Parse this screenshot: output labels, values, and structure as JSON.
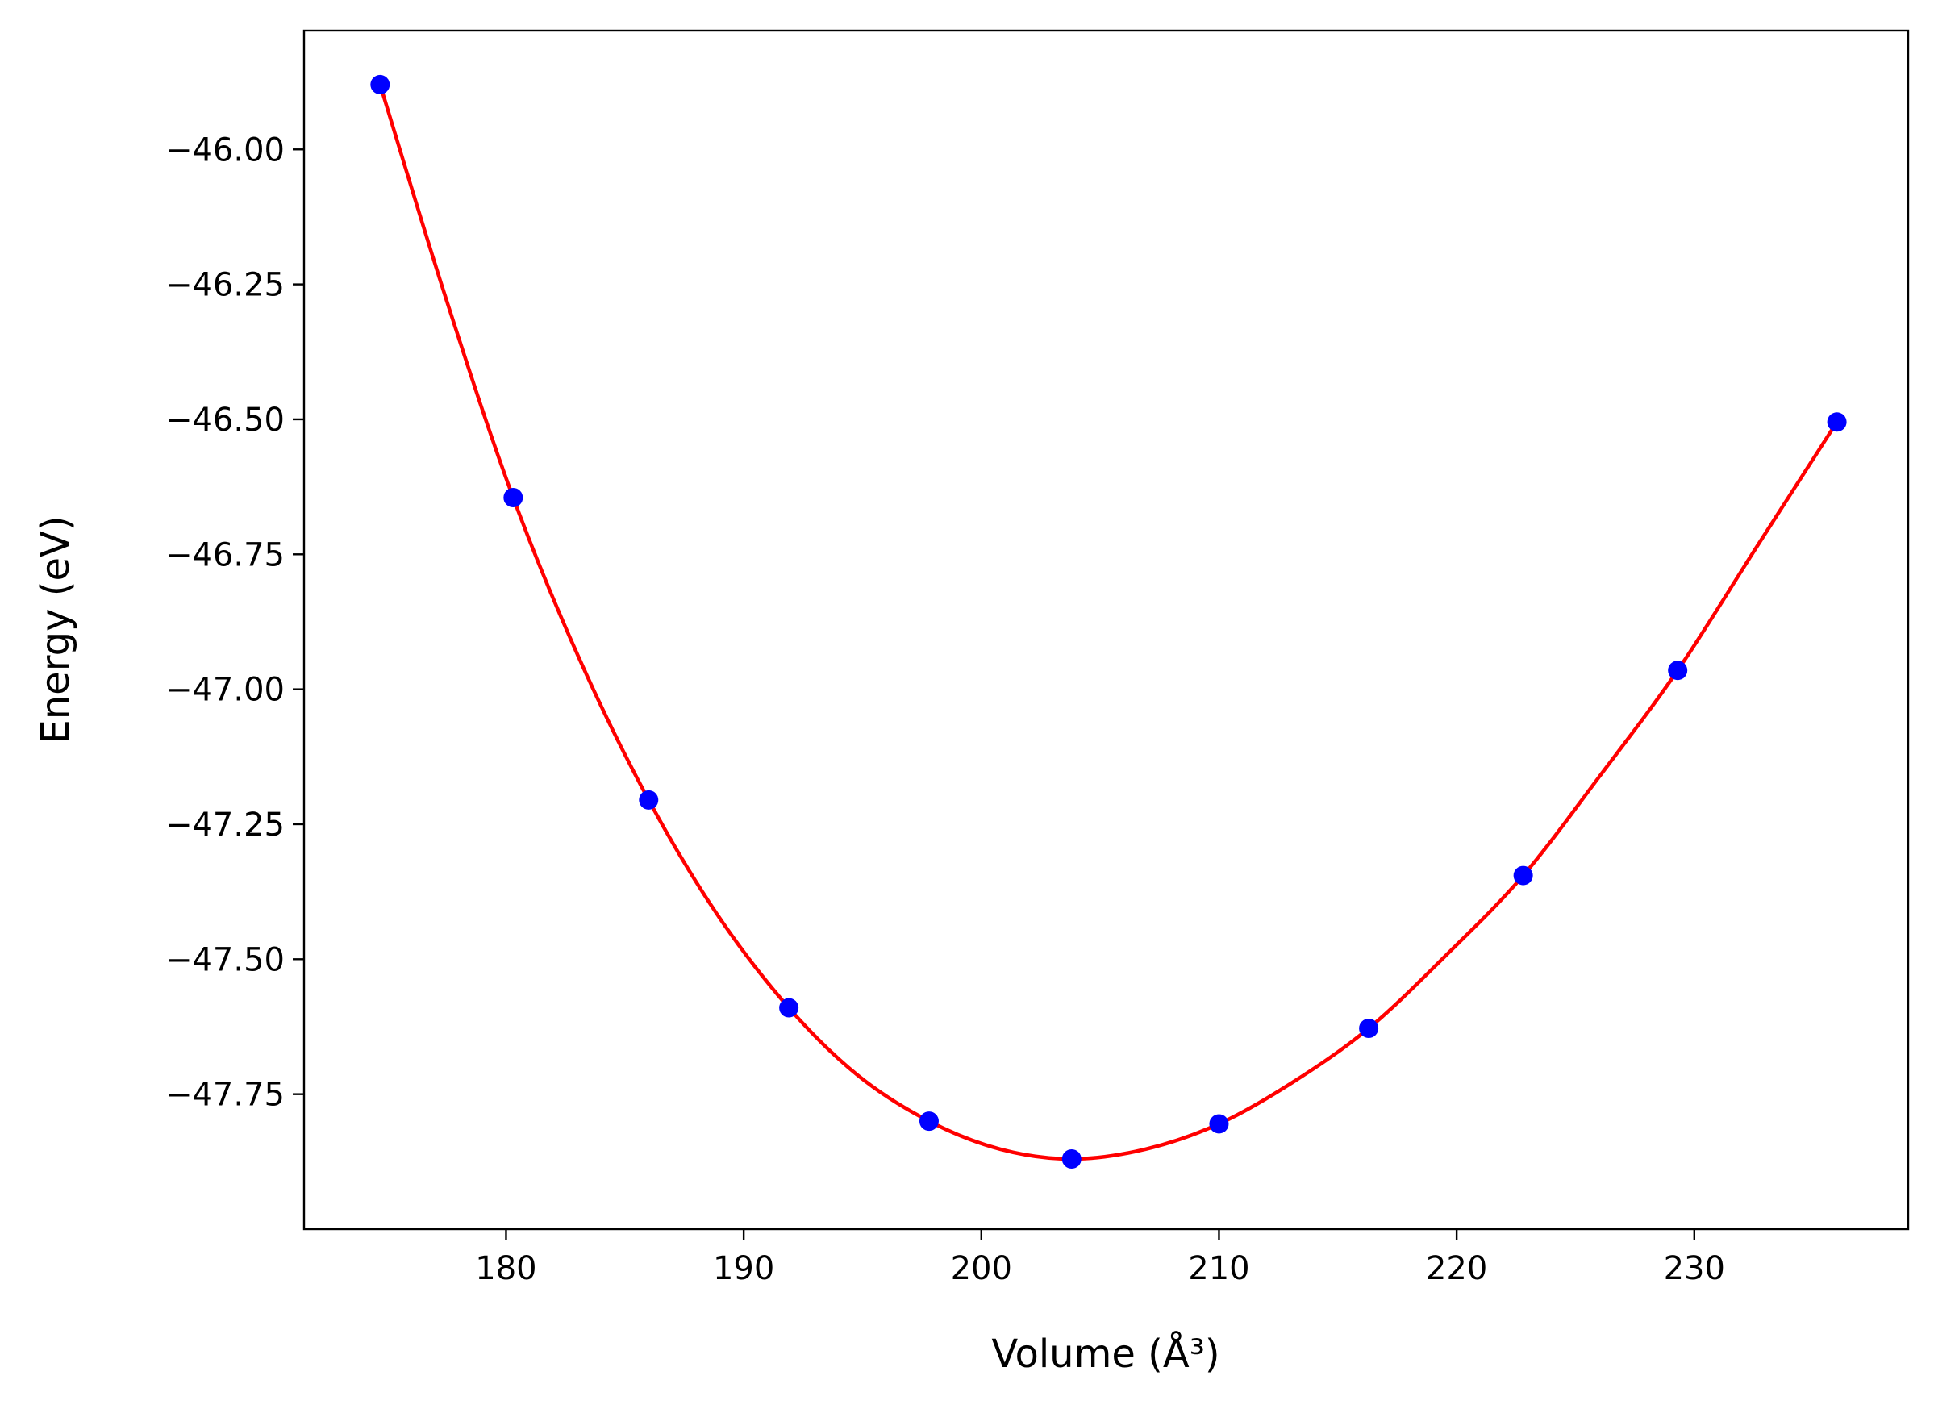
{
  "chart_data": {
    "type": "scatter",
    "title": "",
    "xlabel": "Volume (Å³)",
    "ylabel": "Energy (eV)",
    "xlim": [
      171.5,
      239.0
    ],
    "ylim": [
      -48.0,
      -45.78
    ],
    "xticks": [
      180,
      190,
      200,
      210,
      220,
      230
    ],
    "xtick_labels": [
      "180",
      "190",
      "200",
      "210",
      "220",
      "230"
    ],
    "yticks": [
      -46.0,
      -46.25,
      -46.5,
      -46.75,
      -47.0,
      -47.25,
      -47.5,
      -47.75
    ],
    "ytick_labels": [
      "−46.00",
      "−46.25",
      "−46.50",
      "−46.75",
      "−47.00",
      "−47.25",
      "−47.50",
      "−47.75"
    ],
    "grid": false,
    "series": [
      {
        "kind": "points",
        "color": "#0000ff",
        "x": [
          174.7,
          180.3,
          186.0,
          191.9,
          197.8,
          203.8,
          210.0,
          216.3,
          222.8,
          229.3,
          236.0
        ],
        "y": [
          -45.88,
          -46.645,
          -47.205,
          -47.59,
          -47.8,
          -47.87,
          -47.805,
          -47.628,
          -47.345,
          -46.965,
          -46.505
        ]
      },
      {
        "kind": "fit-curve",
        "color": "#ff0000",
        "x": [
          174.7,
          177.5,
          180.3,
          183.1,
          186.0,
          188.9,
          191.9,
          194.8,
          197.8,
          200.8,
          203.8,
          206.9,
          210.0,
          213.1,
          216.3,
          219.5,
          222.8,
          226.0,
          229.3,
          232.6,
          236.0
        ],
        "y": [
          -45.88,
          -46.28,
          -46.645,
          -46.945,
          -47.205,
          -47.418,
          -47.59,
          -47.715,
          -47.8,
          -47.852,
          -47.87,
          -47.852,
          -47.805,
          -47.728,
          -47.628,
          -47.495,
          -47.345,
          -47.162,
          -46.965,
          -46.738,
          -46.505
        ]
      }
    ]
  }
}
